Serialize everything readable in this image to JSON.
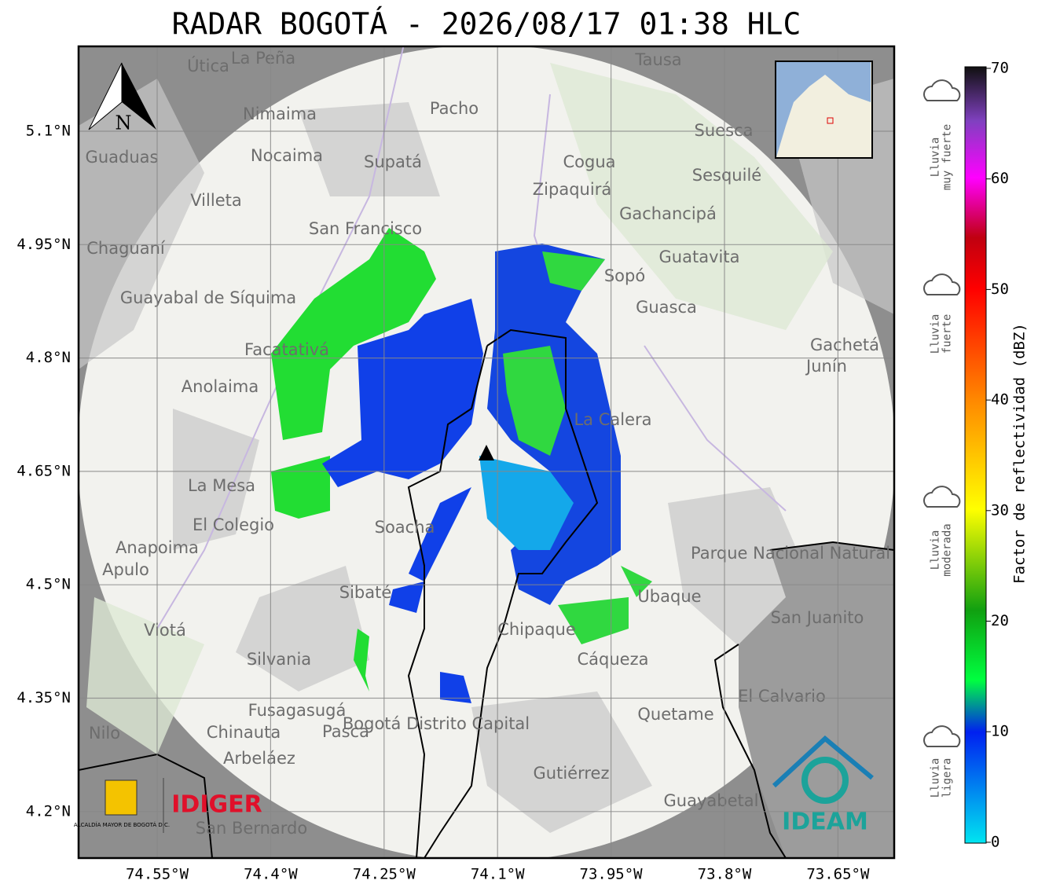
{
  "title": "RADAR BOGOTÁ - 2026/08/17 01:38 HLC",
  "north": "N",
  "lat_ticks": [
    "5.1°N",
    "4.95°N",
    "4.8°N",
    "4.65°N",
    "4.5°N",
    "4.35°N",
    "4.2°N"
  ],
  "lon_ticks": [
    "74.55°W",
    "74.4°W",
    "74.25°W",
    "74.1°W",
    "73.95°W",
    "73.8°W",
    "73.65°W"
  ],
  "colorbar": {
    "label": "Factor de reflectividad (dBZ)",
    "ticks": [
      "70",
      "60",
      "50",
      "40",
      "30",
      "20",
      "10",
      "0"
    ]
  },
  "rain_levels": [
    [
      "Lluvia",
      "muy fuerte"
    ],
    [
      "Lluvia",
      "fuerte"
    ],
    [
      "Lluvia",
      "moderada"
    ],
    [
      "Lluvia",
      "ligera"
    ]
  ],
  "logos": {
    "alcaldia": "ALCALDÍA MAYOR DE BOGOTÁ D.C.",
    "idiger": "IDIGER",
    "ideam": "IDEAM"
  },
  "places": [
    "La Peña",
    "Útica",
    "Tausa",
    "Pacho",
    "Nimaima",
    "Suesca",
    "Guaduas",
    "Nocaima",
    "Supatá",
    "Cogua",
    "Sesquilé",
    "Villeta",
    "Zipaquirá",
    "Gachancipá",
    "San Francisco",
    "Chaguaní",
    "Guatavita",
    "Sopó",
    "Guayabal de Síquima",
    "Guasca",
    "Facatativá",
    "Gachetá",
    "Junín",
    "Anolaima",
    "La Calera",
    "La Mesa",
    "El Colegio",
    "Soacha",
    "Anapoima",
    "Apulo",
    "Parque Nacional Natural Chingaza",
    "Sibaté",
    "Ubaque",
    "San Juanito",
    "Viotá",
    "Chipaque",
    "Silvania",
    "Cáqueza",
    "Fusagasugá",
    "Quetame",
    "El Calvario",
    "Pasca",
    "Chinauta",
    "Bogotá Distrito Capital",
    "Arbeláez",
    "Gutiérrez",
    "Guayabetal",
    "San Bernardo",
    "Nilo"
  ]
}
